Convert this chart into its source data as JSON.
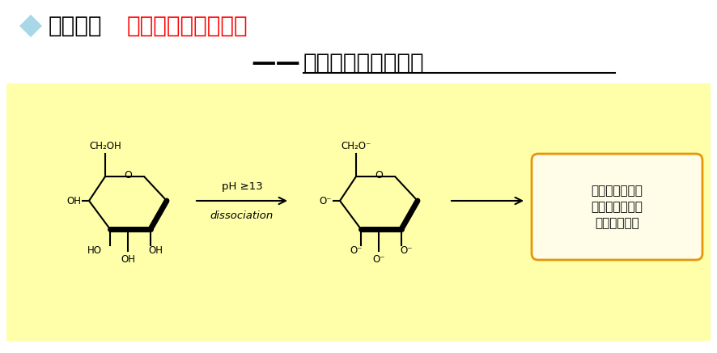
{
  "title_black": "糖类物质",
  "title_red": "高灵敏度检测方案一",
  "subtitle_dash": "——",
  "subtitle_main": "脉冲式电化学检测器",
  "bg_color": "#ffffff",
  "panel_color": "#FEFFA8",
  "diamond_color": "#A8D8E8",
  "title_fontsize": 20,
  "subtitle_fontsize": 20,
  "arrow_label_top": "pH ≥13",
  "arrow_label_bottom": "dissociation",
  "box_text_line1": "通过装有金电极",
  "box_text_line2": "的电化学检测器",
  "box_text_line3": "可以进行检测",
  "box_edge_color": "#E8950A",
  "box_fill_color": "#FFFDE8"
}
